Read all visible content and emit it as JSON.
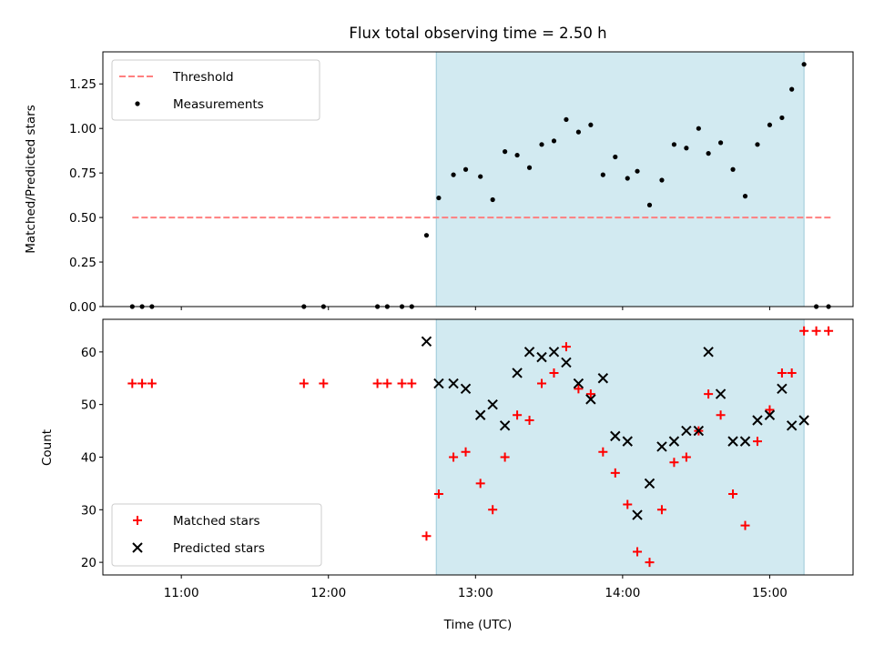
{
  "chart_data": [
    {
      "type": "scatter",
      "title": "Flux total observing time = 2.50 h",
      "xlabel": "",
      "ylabel": "Matched/Predicted stars",
      "ylim": [
        0,
        1.43
      ],
      "yticks": [
        0.0,
        0.25,
        0.5,
        0.75,
        1.0,
        1.25
      ],
      "ytick_labels": [
        "0.00",
        "0.25",
        "0.50",
        "0.75",
        "1.00",
        "1.25"
      ],
      "shaded_span": {
        "start": "12:44",
        "end": "15:14",
        "color": "#add8e6"
      },
      "threshold": {
        "name": "Threshold",
        "value": 0.5,
        "x_start": "10:40",
        "x_end": "15:25",
        "color": "#ff7f7f"
      },
      "legend_position": "upper left",
      "legend": [
        "Threshold",
        "Measurements"
      ],
      "series": [
        {
          "name": "Measurements",
          "marker": "dot",
          "color": "#000000",
          "points": [
            [
              "10:40",
              0
            ],
            [
              "10:44",
              0
            ],
            [
              "10:48",
              0
            ],
            [
              "11:50",
              0
            ],
            [
              "11:58",
              0
            ],
            [
              "12:20",
              0
            ],
            [
              "12:24",
              0
            ],
            [
              "12:30",
              0
            ],
            [
              "12:34",
              0
            ],
            [
              "12:40",
              0.4
            ],
            [
              "12:45",
              0.61
            ],
            [
              "12:51",
              0.74
            ],
            [
              "12:56",
              0.77
            ],
            [
              "13:02",
              0.73
            ],
            [
              "13:07",
              0.6
            ],
            [
              "13:12",
              0.87
            ],
            [
              "13:17",
              0.85
            ],
            [
              "13:22",
              0.78
            ],
            [
              "13:27",
              0.91
            ],
            [
              "13:32",
              0.93
            ],
            [
              "13:37",
              1.05
            ],
            [
              "13:42",
              0.98
            ],
            [
              "13:47",
              1.02
            ],
            [
              "13:52",
              0.74
            ],
            [
              "13:57",
              0.84
            ],
            [
              "14:02",
              0.72
            ],
            [
              "14:06",
              0.76
            ],
            [
              "14:11",
              0.57
            ],
            [
              "14:16",
              0.71
            ],
            [
              "14:21",
              0.91
            ],
            [
              "14:26",
              0.89
            ],
            [
              "14:31",
              1.0
            ],
            [
              "14:35",
              0.86
            ],
            [
              "14:40",
              0.92
            ],
            [
              "14:45",
              0.77
            ],
            [
              "14:50",
              0.62
            ],
            [
              "14:55",
              0.91
            ],
            [
              "15:00",
              1.02
            ],
            [
              "15:05",
              1.06
            ],
            [
              "15:09",
              1.22
            ],
            [
              "15:14",
              1.36
            ],
            [
              "15:19",
              0
            ],
            [
              "15:24",
              0
            ]
          ]
        }
      ]
    },
    {
      "type": "scatter",
      "title": "",
      "xlabel": "Time (UTC)",
      "ylabel": "Count",
      "ylim": [
        17.6,
        66.2
      ],
      "yticks": [
        20,
        30,
        40,
        50,
        60
      ],
      "ytick_labels": [
        "20",
        "30",
        "40",
        "50",
        "60"
      ],
      "xticks": [
        "11:00",
        "12:00",
        "13:00",
        "14:00",
        "15:00"
      ],
      "xlim": [
        "10:28",
        "15:34"
      ],
      "shaded_span": {
        "start": "12:44",
        "end": "15:14",
        "color": "#add8e6"
      },
      "legend_position": "lower left",
      "legend": [
        "Matched stars",
        "Predicted stars"
      ],
      "series": [
        {
          "name": "Matched stars",
          "marker": "plus",
          "color": "#ff0000",
          "points": [
            [
              "10:40",
              54
            ],
            [
              "10:44",
              54
            ],
            [
              "10:48",
              54
            ],
            [
              "11:50",
              54
            ],
            [
              "11:58",
              54
            ],
            [
              "12:20",
              54
            ],
            [
              "12:24",
              54
            ],
            [
              "12:30",
              54
            ],
            [
              "12:34",
              54
            ],
            [
              "12:40",
              25
            ],
            [
              "12:45",
              33
            ],
            [
              "12:51",
              40
            ],
            [
              "12:56",
              41
            ],
            [
              "13:02",
              35
            ],
            [
              "13:07",
              30
            ],
            [
              "13:12",
              40
            ],
            [
              "13:17",
              48
            ],
            [
              "13:22",
              47
            ],
            [
              "13:27",
              54
            ],
            [
              "13:32",
              56
            ],
            [
              "13:37",
              61
            ],
            [
              "13:42",
              53
            ],
            [
              "13:47",
              52
            ],
            [
              "13:52",
              41
            ],
            [
              "13:57",
              37
            ],
            [
              "14:02",
              31
            ],
            [
              "14:06",
              22
            ],
            [
              "14:11",
              20
            ],
            [
              "14:16",
              30
            ],
            [
              "14:21",
              39
            ],
            [
              "14:26",
              40
            ],
            [
              "14:31",
              45
            ],
            [
              "14:35",
              52
            ],
            [
              "14:40",
              48
            ],
            [
              "14:45",
              33
            ],
            [
              "14:50",
              27
            ],
            [
              "14:55",
              43
            ],
            [
              "15:00",
              49
            ],
            [
              "15:05",
              56
            ],
            [
              "15:09",
              56
            ],
            [
              "15:14",
              64
            ],
            [
              "15:19",
              64
            ],
            [
              "15:24",
              64
            ]
          ]
        },
        {
          "name": "Predicted stars",
          "marker": "x",
          "color": "#000000",
          "points": [
            [
              "12:40",
              62
            ],
            [
              "12:45",
              54
            ],
            [
              "12:51",
              54
            ],
            [
              "12:56",
              53
            ],
            [
              "13:02",
              48
            ],
            [
              "13:07",
              50
            ],
            [
              "13:12",
              46
            ],
            [
              "13:17",
              56
            ],
            [
              "13:22",
              60
            ],
            [
              "13:27",
              59
            ],
            [
              "13:32",
              60
            ],
            [
              "13:37",
              58
            ],
            [
              "13:42",
              54
            ],
            [
              "13:47",
              51
            ],
            [
              "13:52",
              55
            ],
            [
              "13:57",
              44
            ],
            [
              "14:02",
              43
            ],
            [
              "14:06",
              29
            ],
            [
              "14:11",
              35
            ],
            [
              "14:16",
              42
            ],
            [
              "14:21",
              43
            ],
            [
              "14:26",
              45
            ],
            [
              "14:31",
              45
            ],
            [
              "14:35",
              60
            ],
            [
              "14:40",
              52
            ],
            [
              "14:45",
              43
            ],
            [
              "14:50",
              43
            ],
            [
              "14:55",
              47
            ],
            [
              "15:00",
              48
            ],
            [
              "15:05",
              53
            ],
            [
              "15:09",
              46
            ],
            [
              "15:14",
              47
            ]
          ]
        }
      ]
    }
  ]
}
